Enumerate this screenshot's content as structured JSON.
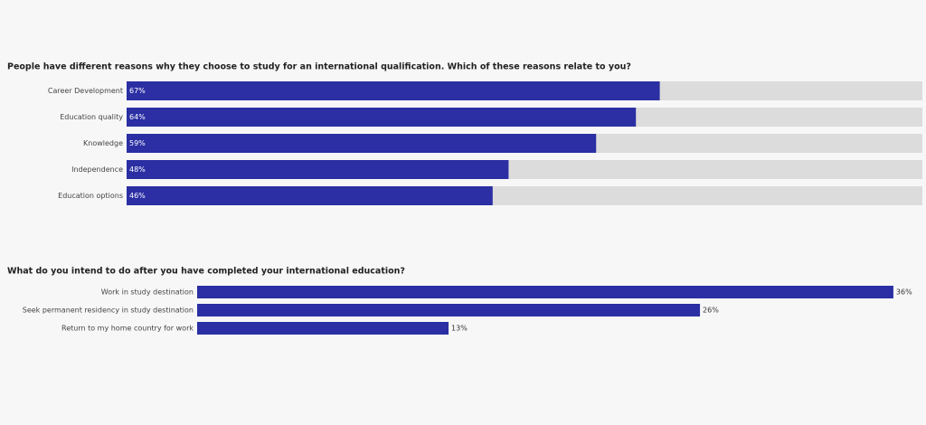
{
  "chart_data": [
    {
      "type": "bar",
      "orientation": "horizontal",
      "title": "People have different reasons why they choose to study for an international qualification.  Which of these reasons relate to you?",
      "categories": [
        "Career Development",
        "Education quality",
        "Knowledge",
        "Independence",
        "Education options"
      ],
      "values": [
        67,
        64,
        59,
        48,
        46
      ],
      "value_labels": [
        "67%",
        "64%",
        "59%",
        "48%",
        "46%"
      ],
      "color": "#2b2fa3",
      "track_color": "#dcdcdc",
      "label_position": "inside",
      "xlim": [
        0,
        100
      ]
    },
    {
      "type": "bar",
      "orientation": "horizontal",
      "title": "What do you intend to do after you have completed your international education?",
      "categories": [
        "Work in study destination",
        "Seek permanent residency in study destination",
        "Return to my home country for work"
      ],
      "values": [
        36,
        26,
        13
      ],
      "value_labels": [
        "36%",
        "26%",
        "13%"
      ],
      "color": "#2b2fa3",
      "label_position": "outside",
      "xlim": [
        0,
        37.5
      ]
    }
  ]
}
